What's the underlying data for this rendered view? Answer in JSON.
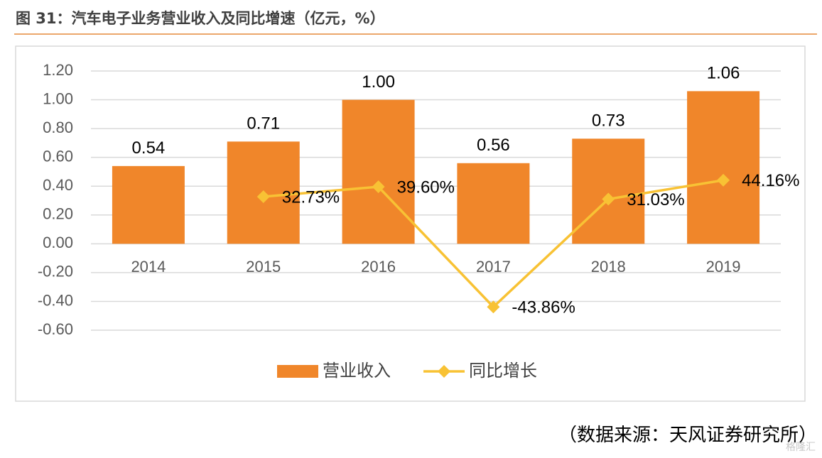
{
  "chart_data": {
    "type": "combo",
    "title": "图 31：汽车电子业务营业收入及同比增速（亿元，%）",
    "source": "（数据来源：天风证券研究所）",
    "watermark": "格隆汇",
    "categories": [
      "2014",
      "2015",
      "2016",
      "2017",
      "2018",
      "2019"
    ],
    "series": [
      {
        "name": "营业收入",
        "type": "bar",
        "color": "#f0862a",
        "values": [
          0.54,
          0.71,
          1.0,
          0.56,
          0.73,
          1.06
        ],
        "value_labels": [
          "0.54",
          "0.71",
          "1.00",
          "0.56",
          "0.73",
          "1.06"
        ]
      },
      {
        "name": "同比增长",
        "type": "line",
        "color": "#f8c234",
        "values": [
          null,
          0.3273,
          0.396,
          -0.4386,
          0.3103,
          0.4416
        ],
        "value_labels": [
          null,
          "32.73%",
          "39.60%",
          "-43.86%",
          "31.03%",
          "44.16%"
        ]
      }
    ],
    "ylim": [
      -0.6,
      1.2
    ],
    "yticks": [
      {
        "value": 1.2,
        "label": "1.20"
      },
      {
        "value": 1.0,
        "label": "1.00"
      },
      {
        "value": 0.8,
        "label": "0.80"
      },
      {
        "value": 0.6,
        "label": "0.60"
      },
      {
        "value": 0.4,
        "label": "0.40"
      },
      {
        "value": 0.2,
        "label": "0.20"
      },
      {
        "value": 0,
        "label": "0.00"
      },
      {
        "value": -0.2,
        "label": "-0.20"
      },
      {
        "value": -0.4,
        "label": "-0.40"
      },
      {
        "value": -0.6,
        "label": "-0.60"
      }
    ],
    "grid": true,
    "legend": "bottom"
  }
}
